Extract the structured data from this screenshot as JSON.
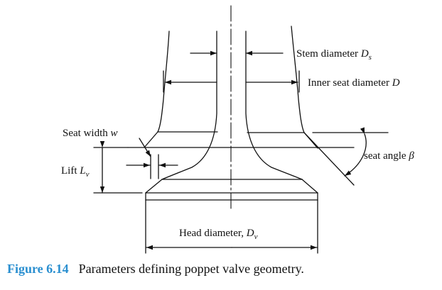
{
  "colors": {
    "ink": "#111111",
    "caption_accent": "#2a8fd0"
  },
  "labels": {
    "stem_diameter": {
      "text": "Stem diameter ",
      "symbol": "D",
      "sub": "s"
    },
    "inner_seat_diameter": {
      "text": "Inner seat diameter ",
      "symbol": "D"
    },
    "seat_width": {
      "text": "Seat width ",
      "symbol": "w"
    },
    "lift": {
      "text": "Lift ",
      "symbol": "L",
      "sub": "v"
    },
    "seat_angle": {
      "text": "seat angle ",
      "symbol": "β"
    },
    "head_diameter": {
      "text": "Head diameter, ",
      "symbol": "D",
      "sub": "v"
    }
  },
  "caption": {
    "number": "Figure 6.14",
    "text": "Parameters defining poppet valve geometry."
  }
}
